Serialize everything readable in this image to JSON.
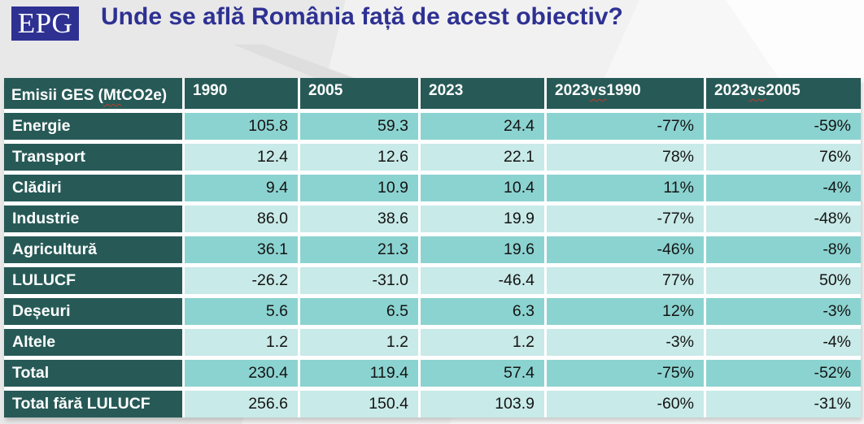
{
  "slide": {
    "logo_text": "EPG",
    "title": "Unde se află România față de acest obiectiv?"
  },
  "colors": {
    "title_navy": "#2E3192",
    "logo_navy": "#2E3192",
    "dark_teal": "#275A57",
    "row_teal_medium": "#8BD3D0",
    "row_teal_pale": "#C8EAE8",
    "spellcheck_red": "#C0392B",
    "background_gray": "#E8E8E8"
  },
  "spellcheck_words": [
    "Mt",
    "vs"
  ],
  "chart_data": {
    "type": "table",
    "title": "Unde se află România față de acest obiectiv?",
    "units": "Mt CO2e",
    "columns": [
      "Emisii GES (Mt CO2e)",
      "1990",
      "2005",
      "2023",
      "2023 vs 1990",
      "2023 vs 2005"
    ],
    "value_columns_alignment": "right",
    "rows": [
      {
        "label": "Energie",
        "values": [
          "105.8",
          "59.3",
          "24.4",
          "-77%",
          "-59%"
        ]
      },
      {
        "label": "Transport",
        "values": [
          "12.4",
          "12.6",
          "22.1",
          "78%",
          "76%"
        ]
      },
      {
        "label": "Clădiri",
        "values": [
          "9.4",
          "10.9",
          "10.4",
          "11%",
          "-4%"
        ]
      },
      {
        "label": "Industrie",
        "values": [
          "86.0",
          "38.6",
          "19.9",
          "-77%",
          "-48%"
        ]
      },
      {
        "label": "Agricultură",
        "values": [
          "36.1",
          "21.3",
          "19.6",
          "-46%",
          "-8%"
        ]
      },
      {
        "label": "LULUCF",
        "values": [
          "-26.2",
          "-31.0",
          "-46.4",
          "77%",
          "50%"
        ]
      },
      {
        "label": "Deșeuri",
        "values": [
          "5.6",
          "6.5",
          "6.3",
          "12%",
          "-3%"
        ]
      },
      {
        "label": "Altele",
        "values": [
          "1.2",
          "1.2",
          "1.2",
          "-3%",
          "-4%"
        ]
      },
      {
        "label": "Total",
        "values": [
          "230.4",
          "119.4",
          "57.4",
          "-75%",
          "-52%"
        ]
      },
      {
        "label": "Total fără LULUCF",
        "values": [
          "256.6",
          "150.4",
          "103.9",
          "-60%",
          "-31%"
        ]
      }
    ]
  }
}
